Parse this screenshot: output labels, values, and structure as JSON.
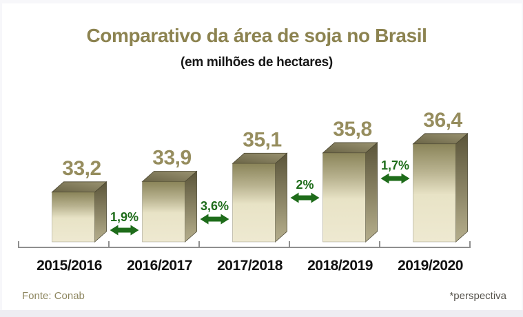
{
  "footer": {
    "source": "Fonte: Conab",
    "note": "*perspectiva"
  },
  "chart_data": {
    "type": "bar",
    "variant": "3d-column",
    "title": "Comparativo da área de soja no Brasil",
    "subtitle": "(em milhões de hectares)",
    "categories": [
      "2015/2016",
      "2016/2017",
      "2017/2018",
      "2018/2019",
      "2019/2020"
    ],
    "values": [
      33.2,
      33.9,
      35.1,
      35.8,
      36.4
    ],
    "value_labels": [
      "33,2",
      "33,9",
      "35,1",
      "35,8",
      "36,4"
    ],
    "pct_changes": [
      1.9,
      3.6,
      2.0,
      1.7
    ],
    "pct_change_labels": [
      "1,9%",
      "3,6%",
      "2%",
      "1,7%"
    ],
    "unit": "milhões de hectares",
    "ylim": [
      29.9,
      36.9
    ],
    "grid": false,
    "legend": "none",
    "last_category_is_forecast": true,
    "colors": {
      "title": "#8c8350",
      "value_label": "#968d5e",
      "bar_front_top": "#8a8459",
      "bar_front_bottom": "#eee9d1",
      "bar_top_face_dark": "#6b6547",
      "bar_top_face_light": "#999270",
      "bar_side_face_dark": "#5a5439",
      "bar_side_face_light": "#b3ac8b",
      "arrow_green": "#1e6c1a",
      "axis": "#8f8f8f"
    }
  }
}
